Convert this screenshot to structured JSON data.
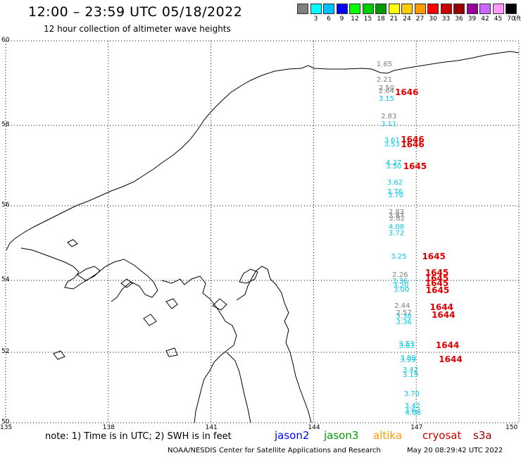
{
  "header": {
    "title": "12:00 – 23:59 UTC 05/18/2022",
    "subtitle": "12 hour collection of altimeter wave heights"
  },
  "legend": {
    "unit": "(ft)",
    "items": [
      {
        "label": "",
        "color": "#7f7f7f"
      },
      {
        "label": "3",
        "color": "#00ffff"
      },
      {
        "label": "6",
        "color": "#00bfff"
      },
      {
        "label": "9",
        "color": "#0000ff"
      },
      {
        "label": "12",
        "color": "#00ff00"
      },
      {
        "label": "15",
        "color": "#00cc00"
      },
      {
        "label": "18",
        "color": "#009900"
      },
      {
        "label": "21",
        "color": "#ffff00"
      },
      {
        "label": "24",
        "color": "#ffcc00"
      },
      {
        "label": "27",
        "color": "#ff9900"
      },
      {
        "label": "30",
        "color": "#ff0000"
      },
      {
        "label": "33",
        "color": "#cc0000"
      },
      {
        "label": "36",
        "color": "#990000"
      },
      {
        "label": "39",
        "color": "#990099"
      },
      {
        "label": "42",
        "color": "#cc66ff"
      },
      {
        "label": "45",
        "color": "#ff99ff"
      },
      {
        "label": "70",
        "color": "#000000"
      }
    ]
  },
  "axes": {
    "lat_labels": [
      "60",
      "58",
      "56",
      "54",
      "52",
      "50"
    ],
    "lon_labels": [
      "135",
      "138",
      "141",
      "144",
      "147",
      "150"
    ]
  },
  "observations": [
    {
      "value": "1.65",
      "lat": 59.43,
      "lon": 145.84,
      "color": "#7f7f7f"
    },
    {
      "value": "2.21",
      "lat": 59.07,
      "lon": 145.84,
      "color": "#7f7f7f"
    },
    {
      "value": "2.50",
      "lat": 58.87,
      "lon": 145.9,
      "color": "#7f7f7f"
    },
    {
      "value": "2.64",
      "lat": 58.8,
      "lon": 145.9,
      "color": "#7f7f7f"
    },
    {
      "value": "3.15",
      "lat": 58.62,
      "lon": 145.9,
      "color": "#00c8e6"
    },
    {
      "value": "2.83",
      "lat": 58.2,
      "lon": 145.97,
      "color": "#7f7f7f"
    },
    {
      "value": "3.11",
      "lat": 58.02,
      "lon": 145.97,
      "color": "#00c8e6"
    },
    {
      "value": "3.61",
      "lat": 57.62,
      "lon": 146.06,
      "color": "#00c8e6"
    },
    {
      "value": "3.53",
      "lat": 57.51,
      "lon": 146.06,
      "color": "#00c8e6"
    },
    {
      "value": "4.37",
      "lat": 57.05,
      "lon": 146.11,
      "color": "#00c8e6"
    },
    {
      "value": "3.50",
      "lat": 56.96,
      "lon": 146.11,
      "color": "#00c8e6"
    },
    {
      "value": "3.62",
      "lat": 56.56,
      "lon": 146.15,
      "color": "#00c8e6"
    },
    {
      "value": "3.76",
      "lat": 56.33,
      "lon": 146.15,
      "color": "#00c8e6"
    },
    {
      "value": "3.70",
      "lat": 56.24,
      "lon": 146.17,
      "color": "#00c8e6"
    },
    {
      "value": "2.83",
      "lat": 55.81,
      "lon": 146.19,
      "color": "#7f7f7f"
    },
    {
      "value": "2.87",
      "lat": 55.71,
      "lon": 146.19,
      "color": "#7f7f7f"
    },
    {
      "value": "2.82",
      "lat": 55.65,
      "lon": 146.21,
      "color": "#7f7f7f"
    },
    {
      "value": "4.08",
      "lat": 55.42,
      "lon": 146.19,
      "color": "#00c8e6"
    },
    {
      "value": "3.72",
      "lat": 55.24,
      "lon": 146.19,
      "color": "#00c8e6"
    },
    {
      "value": "3.25",
      "lat": 54.63,
      "lon": 146.26,
      "color": "#00c8e6"
    },
    {
      "value": "2.26",
      "lat": 54.14,
      "lon": 146.3,
      "color": "#7f7f7f"
    },
    {
      "value": "3.36",
      "lat": 53.96,
      "lon": 146.3,
      "color": "#00c8e6"
    },
    {
      "value": "3.20",
      "lat": 53.84,
      "lon": 146.32,
      "color": "#00c8e6"
    },
    {
      "value": "3.00",
      "lat": 53.72,
      "lon": 146.34,
      "color": "#00c8e6"
    },
    {
      "value": "2.44",
      "lat": 53.28,
      "lon": 146.36,
      "color": "#7f7f7f"
    },
    {
      "value": "2.57",
      "lat": 53.07,
      "lon": 146.41,
      "color": "#7f7f7f"
    },
    {
      "value": "3.38",
      "lat": 52.98,
      "lon": 146.41,
      "color": "#00c8e6"
    },
    {
      "value": "3.36",
      "lat": 52.83,
      "lon": 146.41,
      "color": "#00c8e6"
    },
    {
      "value": "3.53",
      "lat": 52.22,
      "lon": 146.49,
      "color": "#00c8e6"
    },
    {
      "value": "3.63",
      "lat": 52.16,
      "lon": 146.49,
      "color": "#00c8e6"
    },
    {
      "value": "3.80",
      "lat": 51.83,
      "lon": 146.53,
      "color": "#00c8e6"
    },
    {
      "value": "3.99",
      "lat": 51.77,
      "lon": 146.53,
      "color": "#00c8e6"
    },
    {
      "value": "3.42",
      "lat": 51.48,
      "lon": 146.6,
      "color": "#00c8e6"
    },
    {
      "value": "3.19",
      "lat": 51.34,
      "lon": 146.6,
      "color": "#00c8e6"
    },
    {
      "value": "3.70",
      "lat": 50.81,
      "lon": 146.64,
      "color": "#00c8e6"
    },
    {
      "value": "3.42",
      "lat": 50.47,
      "lon": 146.66,
      "color": "#00c8e6"
    },
    {
      "value": "3.62",
      "lat": 50.35,
      "lon": 146.66,
      "color": "#00c8e6"
    },
    {
      "value": "4.08",
      "lat": 50.26,
      "lon": 146.68,
      "color": "#00c8e6"
    }
  ],
  "pass_times": [
    {
      "time": "1646",
      "lat": 58.78,
      "lon": 146.38
    },
    {
      "time": "1646",
      "lat": 57.65,
      "lon": 146.55
    },
    {
      "time": "1646",
      "lat": 57.52,
      "lon": 146.55
    },
    {
      "time": "1645",
      "lat": 56.98,
      "lon": 146.62
    },
    {
      "time": "1645",
      "lat": 54.65,
      "lon": 147.17
    },
    {
      "time": "1645",
      "lat": 54.2,
      "lon": 147.26
    },
    {
      "time": "1645",
      "lat": 54.06,
      "lon": 147.26
    },
    {
      "time": "1645",
      "lat": 53.93,
      "lon": 147.26
    },
    {
      "time": "1645",
      "lat": 53.72,
      "lon": 147.28
    },
    {
      "time": "1644",
      "lat": 53.25,
      "lon": 147.4
    },
    {
      "time": "1644",
      "lat": 53.03,
      "lon": 147.45
    },
    {
      "time": "1644",
      "lat": 52.2,
      "lon": 147.57
    },
    {
      "time": "1644",
      "lat": 51.8,
      "lon": 147.66
    }
  ],
  "footer": {
    "note": "note: 1) Time is in UTC; 2) SWH is in feet",
    "satellites": [
      {
        "name": "jason2",
        "color": "#0000ff"
      },
      {
        "name": "jason3",
        "color": "#009900"
      },
      {
        "name": "altika",
        "color": "#ff9900"
      },
      {
        "name": "cryosat",
        "color": "#cc0000"
      },
      {
        "name": "s3a",
        "color": "#990000"
      }
    ],
    "credit": "NOAA/NESDIS Center for Satellite Applications and Research",
    "timestamp": "May 20 08:29:42 UTC 2022"
  }
}
